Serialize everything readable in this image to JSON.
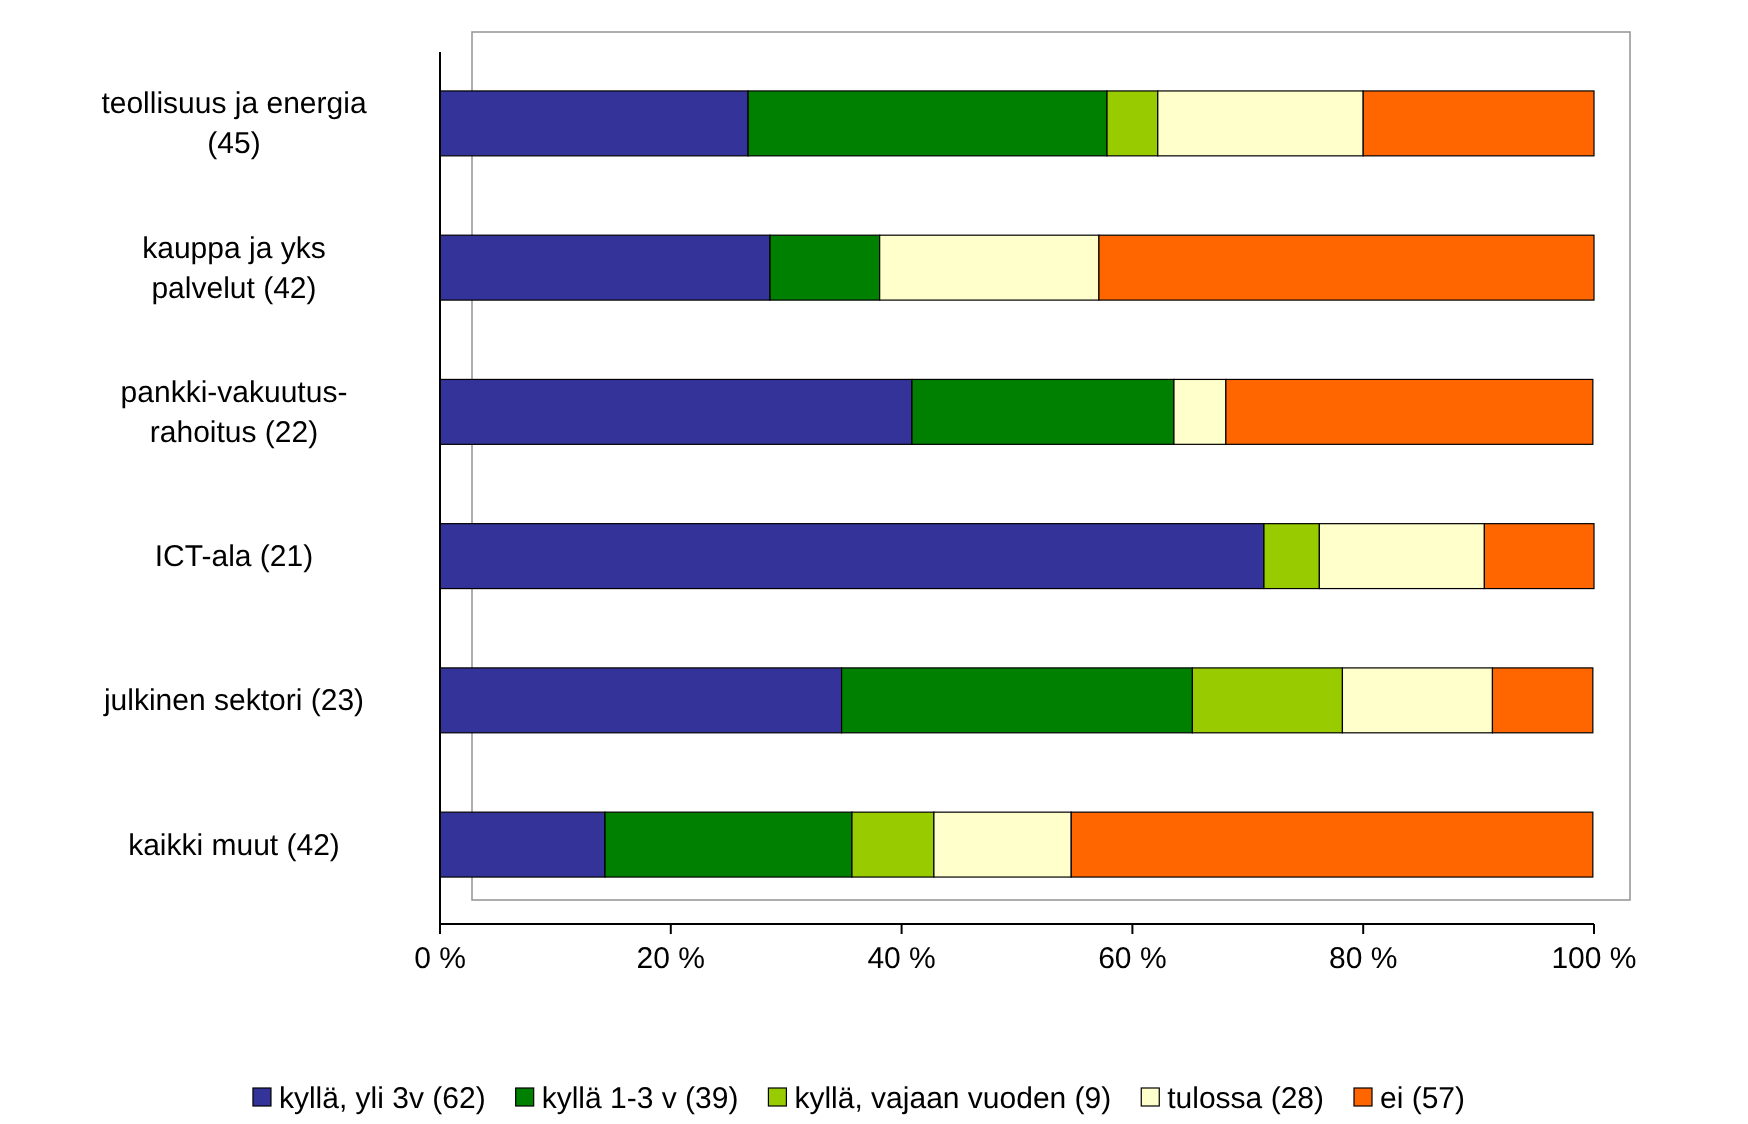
{
  "chart_data": {
    "type": "bar",
    "orientation": "horizontal",
    "stacked": true,
    "categories": [
      "teollisuus ja energia (45)",
      "kauppa ja yks palvelut (42)",
      "pankki-vakuutus-rahoitus (22)",
      "ICT-ala (21)",
      "julkinen sektori (23)",
      "kaikki muut (42)"
    ],
    "series": [
      {
        "name": "kyllä, yli 3v (62)",
        "color": "#333399",
        "values": [
          26.7,
          28.6,
          40.9,
          71.4,
          34.8,
          14.3
        ]
      },
      {
        "name": "kyllä 1-3 v (39)",
        "color": "#008000",
        "values": [
          31.1,
          9.5,
          22.7,
          0,
          30.4,
          21.4
        ]
      },
      {
        "name": "kyllä, vajaan vuoden (9)",
        "color": "#99cc00",
        "values": [
          4.4,
          0,
          0,
          4.8,
          13.0,
          7.1
        ]
      },
      {
        "name": "tulossa (28)",
        "color": "#ffffcc",
        "values": [
          17.8,
          19.0,
          4.5,
          14.3,
          13.0,
          11.9
        ]
      },
      {
        "name": "ei (57)",
        "color": "#ff6600",
        "values": [
          20.0,
          42.9,
          31.8,
          9.5,
          8.7,
          45.2
        ]
      }
    ],
    "xlim": [
      0,
      100
    ],
    "xticks": [
      {
        "value": 0,
        "label": "0 %"
      },
      {
        "value": 20,
        "label": "20 %"
      },
      {
        "value": 40,
        "label": "40 %"
      },
      {
        "value": 60,
        "label": "60 %"
      },
      {
        "value": 80,
        "label": "80 %"
      },
      {
        "value": 100,
        "label": "100 %"
      }
    ],
    "legend": "bottom",
    "grid": false
  }
}
